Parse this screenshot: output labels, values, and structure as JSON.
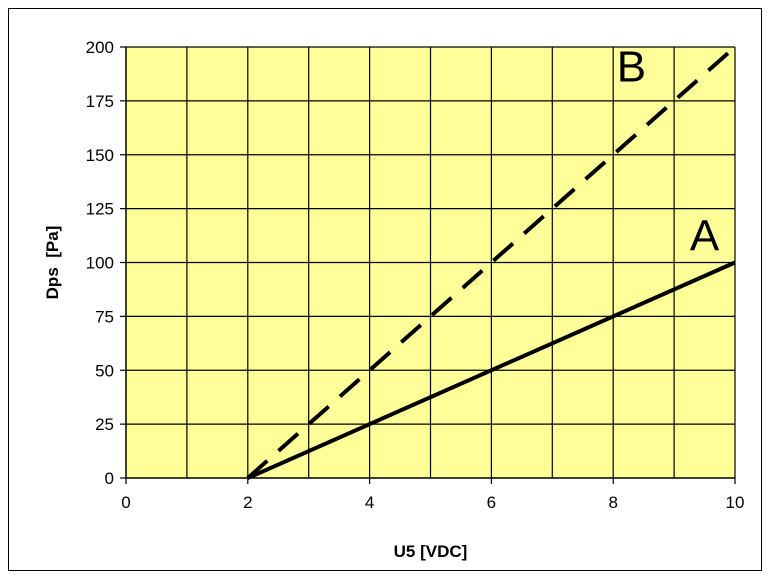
{
  "chart_data": {
    "type": "line",
    "xlabel": "U5 [VDC]",
    "ylabel": "Dps  [Pa]",
    "xlim": [
      0,
      10
    ],
    "ylim": [
      0,
      200
    ],
    "x_ticks": [
      0,
      2,
      4,
      6,
      8,
      10
    ],
    "y_ticks": [
      0,
      25,
      50,
      75,
      100,
      125,
      150,
      175,
      200
    ],
    "grid": true,
    "plot_background": "#ffff99",
    "series": [
      {
        "name": "A",
        "style": "solid",
        "color": "#000000",
        "x": [
          2,
          10
        ],
        "y": [
          0,
          100
        ]
      },
      {
        "name": "B",
        "style": "dashed",
        "color": "#000000",
        "x": [
          2,
          10
        ],
        "y": [
          0,
          200
        ]
      }
    ]
  }
}
